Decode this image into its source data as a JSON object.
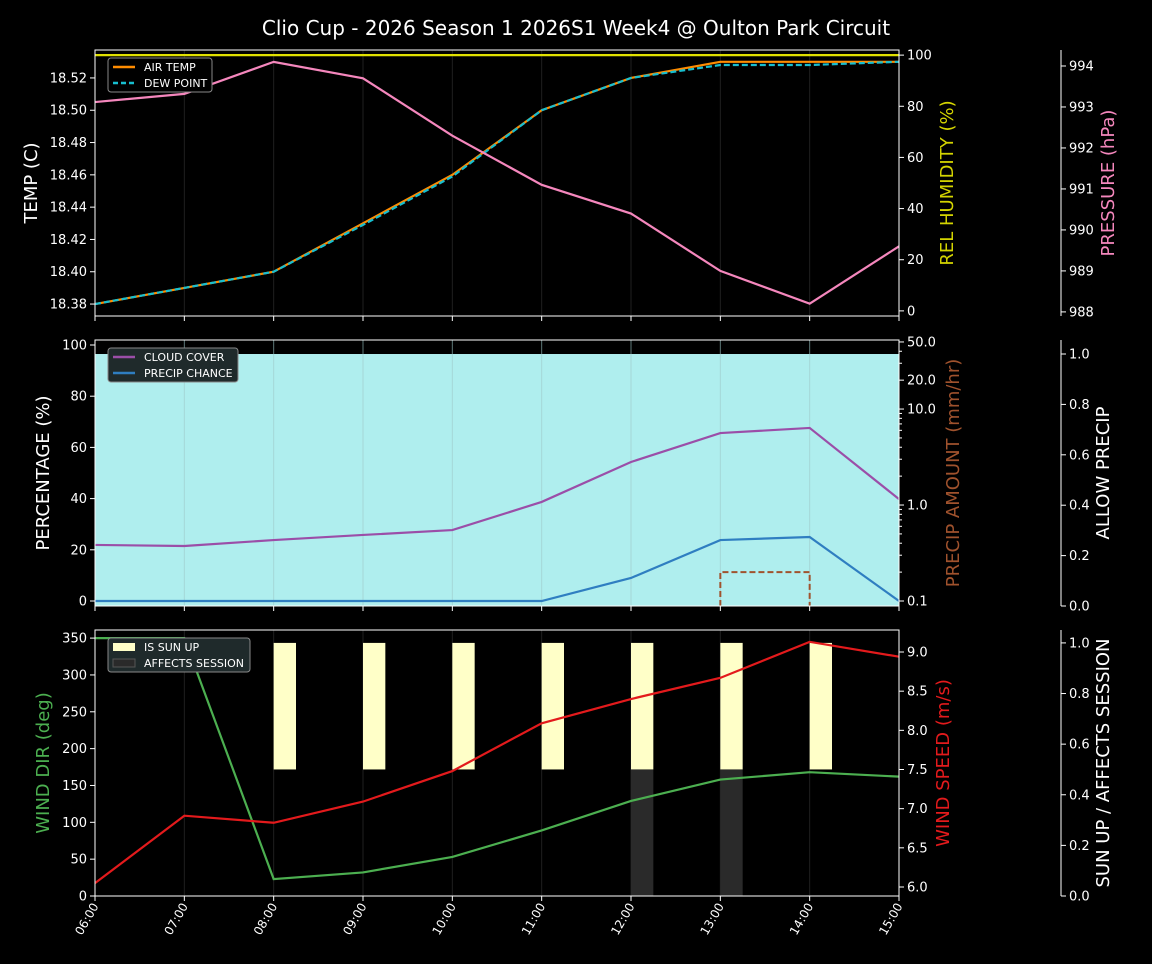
{
  "chart_data": {
    "type": "line",
    "title": "Clio Cup - 2026 Season 1 2026S1 Week4 @ Oulton Park Circuit",
    "x": [
      "06:00",
      "07:00",
      "08:00",
      "09:00",
      "10:00",
      "11:00",
      "12:00",
      "13:00",
      "14:00",
      "15:00"
    ],
    "panels": [
      {
        "axes": {
          "left": {
            "label": "TEMP (C)",
            "color": "#ffffff",
            "ylim": [
              18.3726,
              18.5373
            ],
            "ticks": [
              18.38,
              18.4,
              18.42,
              18.44,
              18.46,
              18.48,
              18.5,
              18.52
            ],
            "tick_labels": [
              "18.38",
              "18.40",
              "18.42",
              "18.44",
              "18.46",
              "18.48",
              "18.50",
              "18.52"
            ]
          },
          "right": {
            "label": "REL HUMIDITY (%)",
            "color": "#d4d400",
            "ylim": [
              -2,
              102
            ],
            "ticks": [
              0,
              20,
              40,
              60,
              80,
              100
            ],
            "tick_labels": [
              "0",
              "20",
              "40",
              "60",
              "80",
              "100"
            ]
          },
          "right2": {
            "label": "PRESSURE (hPa)",
            "color": "#f587bd",
            "ylim": [
              987.9,
              994.39
            ],
            "ticks": [
              988,
              989,
              990,
              991,
              992,
              993,
              994
            ],
            "tick_labels": [
              "988",
              "989",
              "990",
              "991",
              "992",
              "993",
              "994"
            ]
          }
        },
        "series": [
          {
            "name": "REL HUMIDITY",
            "axis": "right",
            "color": "#e0e000",
            "values": [
              100,
              100,
              100,
              100,
              100,
              100,
              100,
              100,
              100,
              100
            ]
          },
          {
            "name": "AIR TEMP",
            "axis": "left",
            "color": "#ff8c00",
            "values": [
              18.38,
              18.39,
              18.4,
              18.43,
              18.46,
              18.5,
              18.52,
              18.53,
              18.53,
              18.53
            ]
          },
          {
            "name": "DEW POINT",
            "axis": "left",
            "color": "#17becf",
            "dash": true,
            "values": [
              18.38,
              18.39,
              18.4,
              18.429,
              18.459,
              18.5,
              18.52,
              18.528,
              18.528,
              18.53
            ]
          },
          {
            "name": "PRESSURE",
            "axis": "right2",
            "color": "#f587bd",
            "values": [
              993.12,
              993.32,
              994.1,
              993.7,
              992.3,
              991.1,
              990.4,
              989.0,
              988.2,
              989.6
            ]
          }
        ],
        "legend": [
          {
            "label": "AIR TEMP",
            "color": "#ff8c00"
          },
          {
            "label": "DEW POINT",
            "color": "#17becf",
            "dash": true
          }
        ]
      },
      {
        "axes": {
          "left": {
            "label": "PERCENTAGE (%)",
            "color": "#ffffff",
            "ylim": [
              -1.95,
              101.95
            ],
            "ticks": [
              0,
              20,
              40,
              60,
              80,
              100
            ],
            "tick_labels": [
              "0",
              "20",
              "40",
              "60",
              "80",
              "100"
            ]
          },
          "right": {
            "label": "PRECIP AMOUNT (mm/hr)",
            "color": "#a0522d",
            "scale": "log",
            "ylim": [
              0.0887,
              52.4
            ],
            "ticks": [
              0.1,
              1,
              10,
              20,
              50
            ],
            "tick_labels": [
              "0.1",
              "1.0",
              "10.0",
              "20.0",
              "50.0"
            ]
          },
          "right2": {
            "label": "ALLOW PRECIP",
            "color": "#ffffff",
            "ylim": [
              0,
              1.0556
            ],
            "ticks": [
              0,
              0.2,
              0.4,
              0.6,
              0.8,
              1.0
            ],
            "tick_labels": [
              "0.0",
              "0.2",
              "0.4",
              "0.6",
              "0.8",
              "1.0"
            ]
          }
        },
        "fill": {
          "name": "ALLOW PRECIP",
          "axis": "right2",
          "color": "#afeeee",
          "values": [
            1,
            1,
            1,
            1,
            1,
            1,
            1,
            1,
            1,
            1
          ]
        },
        "series": [
          {
            "name": "CLOUD COVER",
            "axis": "left",
            "color": "#9b4ea8",
            "values": [
              21.9,
              21.5,
              23.8,
              25.8,
              27.7,
              38.7,
              54.3,
              65.6,
              67.6,
              39.8
            ]
          },
          {
            "name": "PRECIP CHANCE",
            "axis": "left",
            "color": "#2f7ec1",
            "values": [
              0,
              0,
              0,
              0,
              0,
              0,
              9,
              23.8,
              25,
              0
            ]
          },
          {
            "name": "PRECIP AMOUNT",
            "axis": "right",
            "color": "#a0522d",
            "dash": true,
            "step": true,
            "values": [
              0,
              0,
              0,
              0,
              0,
              0,
              0,
              0.2,
              0,
              0
            ]
          }
        ],
        "legend": [
          {
            "label": "CLOUD COVER",
            "color": "#9b4ea8"
          },
          {
            "label": "PRECIP CHANCE",
            "color": "#2f7ec1"
          }
        ]
      },
      {
        "axes": {
          "left": {
            "label": "WIND DIR (deg)",
            "color": "#4caf50",
            "ylim": [
              0,
              361
            ],
            "ticks": [
              0,
              50,
              100,
              150,
              200,
              250,
              300,
              350
            ],
            "tick_labels": [
              "0",
              "50",
              "100",
              "150",
              "200",
              "250",
              "300",
              "350"
            ]
          },
          "right": {
            "label": "WIND SPEED (m/s)",
            "color": "#e31a1c",
            "ylim": [
              5.885,
              9.281
            ],
            "ticks": [
              6.0,
              6.5,
              7.0,
              7.5,
              8.0,
              8.5,
              9.0
            ],
            "tick_labels": [
              "6.0",
              "6.5",
              "7.0",
              "7.5",
              "8.0",
              "8.5",
              "9.0"
            ]
          },
          "right2": {
            "label": "SUN UP / AFFECTS SESSION",
            "color": "#ffffff",
            "ylim": [
              0,
              1.051
            ],
            "ticks": [
              0,
              0.2,
              0.4,
              0.6,
              0.8,
              1.0
            ],
            "tick_labels": [
              "0.0",
              "0.2",
              "0.4",
              "0.6",
              "0.8",
              "1.0"
            ]
          }
        },
        "bars": [
          {
            "name": "IS SUN UP",
            "color": "#ffffc8",
            "base": 0.5,
            "values": [
              0,
              0,
              1,
              1,
              1,
              1,
              1,
              1,
              1,
              0
            ]
          },
          {
            "name": "AFFECTS SESSION",
            "color": "#2a2a2a",
            "base": 0,
            "values": [
              0,
              0,
              0,
              0,
              0,
              0,
              1,
              1,
              0,
              0
            ]
          }
        ],
        "series": [
          {
            "name": "WIND DIR",
            "axis": "left",
            "color": "#4caf50",
            "values": [
              350,
              350,
              23,
              32,
              53,
              89,
              129,
              158,
              168,
              162
            ]
          },
          {
            "name": "WIND SPEED",
            "axis": "right",
            "color": "#e31a1c",
            "values": [
              6.05,
              6.91,
              6.82,
              7.09,
              7.48,
              8.09,
              8.4,
              8.67,
              9.13,
              8.94
            ]
          }
        ],
        "legend": [
          {
            "label": "IS SUN UP",
            "color": "#ffffc8",
            "box": true
          },
          {
            "label": "AFFECTS SESSION",
            "color": "#2a2a2a",
            "box": true
          }
        ]
      }
    ]
  }
}
